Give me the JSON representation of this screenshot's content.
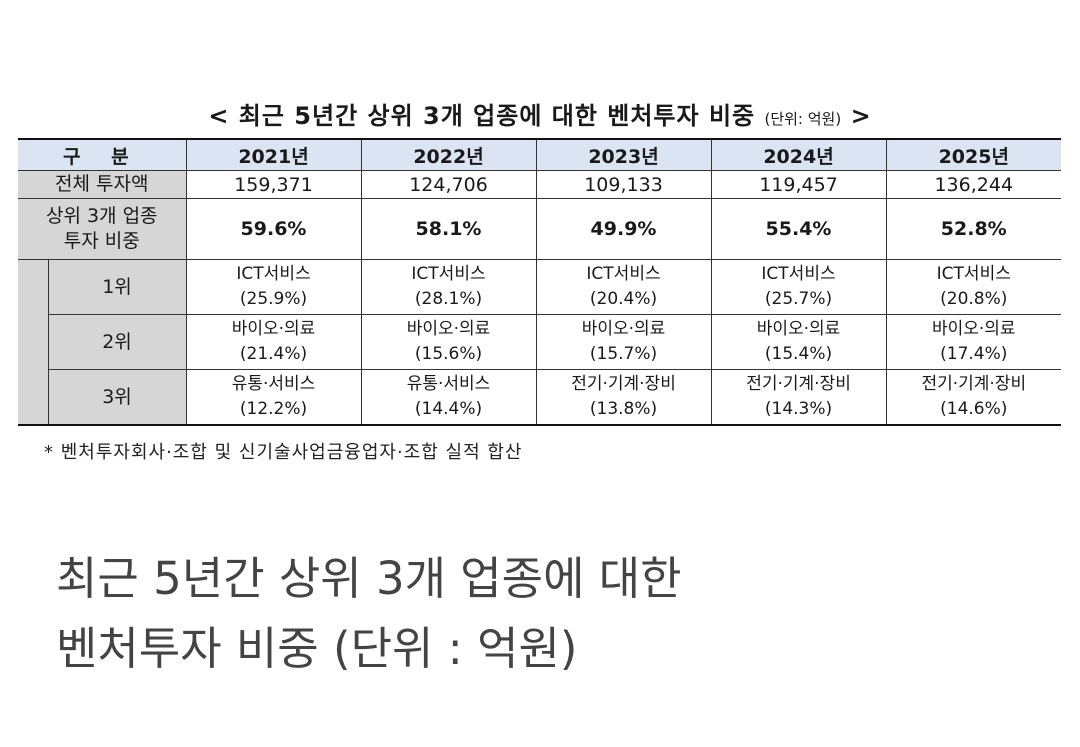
{
  "title": {
    "main": "< 최근 5년간 상위 3개 업종에 대한 벤처투자 비중",
    "unit": "(단위: 억원)",
    "close": ">"
  },
  "table": {
    "header_label": "구 분",
    "years": [
      "2021년",
      "2022년",
      "2023년",
      "2024년",
      "2025년"
    ],
    "total_label": "전체 투자액",
    "totals": [
      "159,371",
      "124,706",
      "109,133",
      "119,457",
      "136,244"
    ],
    "top3_label_line1": "상위 3개 업종",
    "top3_label_line2": "투자 비중",
    "top3_shares": [
      "59.6%",
      "58.1%",
      "49.9%",
      "55.4%",
      "52.8%"
    ],
    "ranks": [
      {
        "label": "1위",
        "cells": [
          {
            "name": "ICT서비스",
            "pct": "(25.9%)"
          },
          {
            "name": "ICT서비스",
            "pct": "(28.1%)"
          },
          {
            "name": "ICT서비스",
            "pct": "(20.4%)"
          },
          {
            "name": "ICT서비스",
            "pct": "(25.7%)"
          },
          {
            "name": "ICT서비스",
            "pct": "(20.8%)"
          }
        ]
      },
      {
        "label": "2위",
        "cells": [
          {
            "name": "바이오·의료",
            "pct": "(21.4%)"
          },
          {
            "name": "바이오·의료",
            "pct": "(15.6%)"
          },
          {
            "name": "바이오·의료",
            "pct": "(15.7%)"
          },
          {
            "name": "바이오·의료",
            "pct": "(15.4%)"
          },
          {
            "name": "바이오·의료",
            "pct": "(17.4%)"
          }
        ]
      },
      {
        "label": "3위",
        "cells": [
          {
            "name": "유통·서비스",
            "pct": "(12.2%)"
          },
          {
            "name": "유통·서비스",
            "pct": "(14.4%)"
          },
          {
            "name": "전기·기계·장비",
            "pct": "(13.8%)"
          },
          {
            "name": "전기·기계·장비",
            "pct": "(14.3%)"
          },
          {
            "name": "전기·기계·장비",
            "pct": "(14.6%)"
          }
        ]
      }
    ]
  },
  "note": "* 벤처투자회사·조합 및 신기술사업금융업자·조합 실적 합산",
  "caption": {
    "line1": "최근 5년간 상위 3개 업종에 대한",
    "line2": "벤처투자 비중 (단위 : 억원)"
  },
  "colors": {
    "header_bg": "#dbe4f3",
    "label_bg": "#d6d6d6",
    "caption_text": "#444444"
  }
}
